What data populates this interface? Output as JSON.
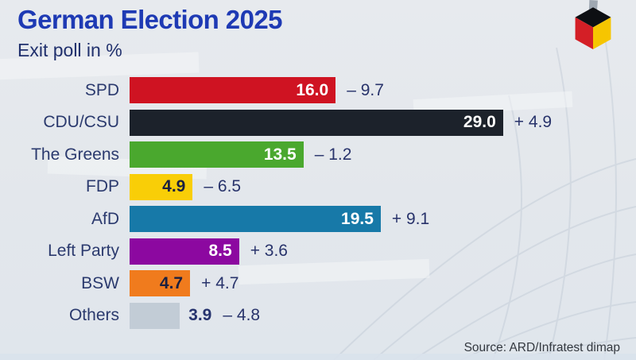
{
  "header": {
    "title": "German Election 2025",
    "subtitle": "Exit poll in %"
  },
  "source": "Source: ARD/Infratest dimap",
  "logo": {
    "name": "ballot-box-cube",
    "colors": {
      "top": "#0d0f13",
      "left": "#d41f26",
      "right": "#f6c500",
      "ballot_slip": "#9fa8b2"
    }
  },
  "chart_data": {
    "type": "bar",
    "orientation": "horizontal",
    "title": "German Election 2025",
    "subtitle": "Exit poll in %",
    "unit": "%",
    "xlim": [
      0,
      35
    ],
    "grid": false,
    "categories": [
      "SPD",
      "CDU/CSU",
      "The Greens",
      "FDP",
      "AfD",
      "Left Party",
      "BSW",
      "Others"
    ],
    "values": [
      16.0,
      29.0,
      13.5,
      4.9,
      19.5,
      8.5,
      4.7,
      3.9
    ],
    "changes": [
      -9.7,
      4.9,
      -1.2,
      -6.5,
      9.1,
      3.6,
      4.7,
      -4.8
    ],
    "parties": [
      {
        "label": "SPD",
        "value": 16.0,
        "value_label": "16.0",
        "change_label": "– 9.7",
        "bar_color": "#cf1322",
        "value_color": "#ffffff",
        "value_position": "inside"
      },
      {
        "label": "CDU/CSU",
        "value": 29.0,
        "value_label": "29.0",
        "change_label": "+ 4.9",
        "bar_color": "#1c222b",
        "value_color": "#ffffff",
        "value_position": "inside"
      },
      {
        "label": "The Greens",
        "value": 13.5,
        "value_label": "13.5",
        "change_label": "– 1.2",
        "bar_color": "#4aa82e",
        "value_color": "#ffffff",
        "value_position": "inside"
      },
      {
        "label": "FDP",
        "value": 4.9,
        "value_label": "4.9",
        "change_label": "– 6.5",
        "bar_color": "#f9ce07",
        "value_color": "#1b2040",
        "value_position": "inside"
      },
      {
        "label": "AfD",
        "value": 19.5,
        "value_label": "19.5",
        "change_label": "+ 9.1",
        "bar_color": "#1779a8",
        "value_color": "#ffffff",
        "value_position": "inside"
      },
      {
        "label": "Left Party",
        "value": 8.5,
        "value_label": "8.5",
        "change_label": "+ 3.6",
        "bar_color": "#8c08a0",
        "value_color": "#ffffff",
        "value_position": "inside"
      },
      {
        "label": "BSW",
        "value": 4.7,
        "value_label": "4.7",
        "change_label": "+ 4.7",
        "bar_color": "#f07b1d",
        "value_color": "#1b2040",
        "value_position": "inside"
      },
      {
        "label": "Others",
        "value": 3.9,
        "value_label": "3.9",
        "change_label": "– 4.8",
        "bar_color": "#c2ccd6",
        "value_color": "#26336e",
        "value_position": "outside"
      }
    ]
  }
}
